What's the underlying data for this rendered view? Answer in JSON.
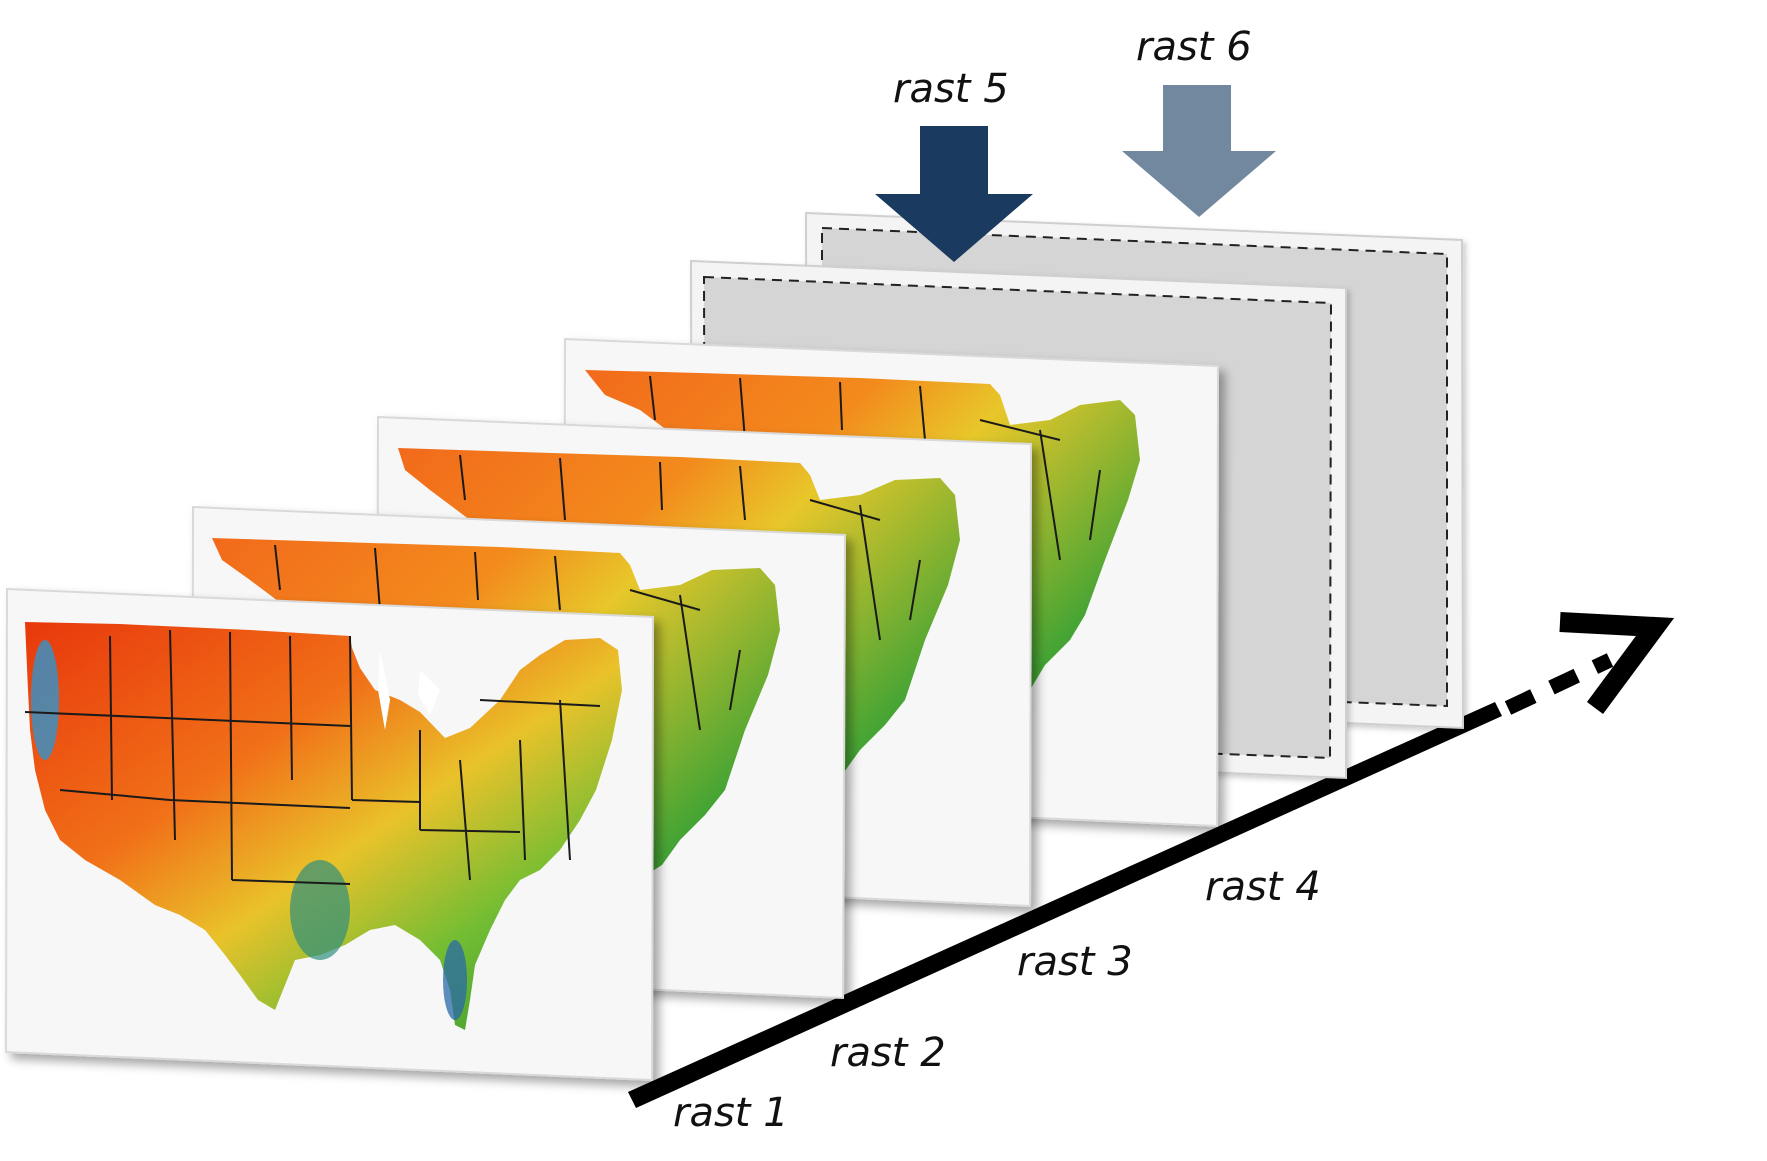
{
  "diagram": {
    "incoming_labels": [
      {
        "id": "rast5",
        "text": "rast 5",
        "arrow_color": "#1b3a5f"
      },
      {
        "id": "rast6",
        "text": "rast 6",
        "arrow_color": "#72889e"
      }
    ],
    "axis_labels": [
      "rast 1",
      "rast 2",
      "rast 3",
      "rast 4"
    ],
    "axis": {
      "color": "#000000",
      "continues": "dotted-arrow"
    },
    "placeholder_layers": {
      "fill": "#d4d4d4",
      "border": "dashed"
    },
    "map_panels": {
      "count": 4,
      "content": "US raster map",
      "palette": [
        "#e41d0b",
        "#f7941d",
        "#ffd21e",
        "#7ccf35",
        "#2f8f2e",
        "#2a6aa8"
      ]
    }
  }
}
